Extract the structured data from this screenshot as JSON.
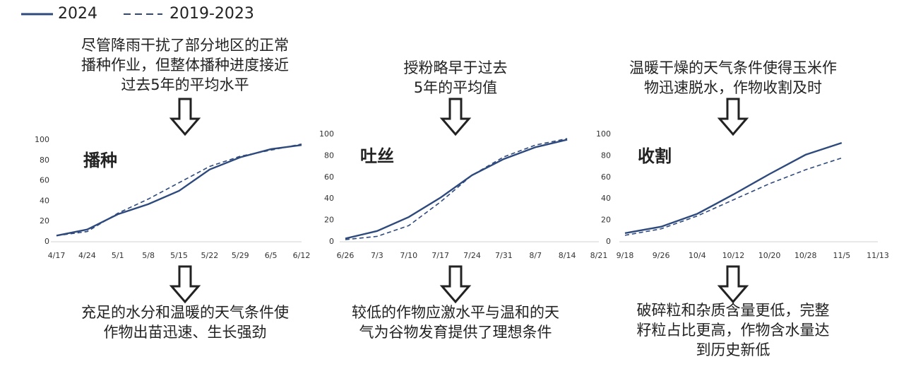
{
  "chart_data": [
    {
      "type": "line",
      "title": "播种",
      "annotation_above": [
        "尽管降雨干扰了部分地区的正常",
        "播种作业，但整体播种进度接近",
        "过去5年的平均水平"
      ],
      "annotation_below": [
        "充足的水分和温暖的天气条件使",
        "作物出苗迅速、生长强劲"
      ],
      "categories": [
        "4/17",
        "4/24",
        "5/1",
        "5/8",
        "5/15",
        "5/22",
        "5/29",
        "6/5",
        "6/12"
      ],
      "series": [
        {
          "name": "2024",
          "color": "#2e4a7d",
          "style": "solid",
          "values": [
            6,
            12,
            27,
            37,
            50,
            71,
            83,
            91,
            95
          ]
        },
        {
          "name": "2019-2023",
          "color": "#2e4a7d",
          "style": "dashed",
          "values": [
            6,
            10,
            28,
            42,
            58,
            74,
            84,
            90,
            96
          ]
        }
      ],
      "ylim": [
        0,
        100
      ],
      "yticks": [
        0,
        20,
        40,
        60,
        80,
        100
      ]
    },
    {
      "type": "line",
      "title": "吐丝",
      "annotation_above": [
        "授粉略早于过去",
        "5年的平均值"
      ],
      "annotation_below": [
        "较低的作物应激水平与温和的天",
        "气为谷物发育提供了理想条件"
      ],
      "categories": [
        "6/26",
        "7/3",
        "7/10",
        "7/17",
        "7/24",
        "7/31",
        "8/7",
        "8/14",
        "8/21"
      ],
      "series": [
        {
          "name": "2024",
          "color": "#2e4a7d",
          "style": "solid",
          "values": [
            3,
            10,
            23,
            41,
            62,
            77,
            88,
            95,
            null
          ]
        },
        {
          "name": "2019-2023",
          "color": "#2e4a7d",
          "style": "dashed",
          "values": [
            2,
            5,
            15,
            37,
            62,
            79,
            90,
            96,
            null
          ]
        }
      ],
      "ylim": [
        0,
        100
      ],
      "yticks": [
        0,
        20,
        40,
        60,
        80,
        100
      ]
    },
    {
      "type": "line",
      "title": "收割",
      "annotation_above": [
        "温暖干燥的天气条件使得玉米作",
        "物迅速脱水，作物收割及时"
      ],
      "annotation_below": [
        "破碎粒和杂质含量更低，完整",
        "籽粒占比更高，作物含水量达",
        "到历史新低"
      ],
      "categories": [
        "9/18",
        "9/26",
        "10/4",
        "10/12",
        "10/20",
        "10/28",
        "11/5",
        "11/13"
      ],
      "series": [
        {
          "name": "2024",
          "color": "#2e4a7d",
          "style": "solid",
          "values": [
            8,
            14,
            26,
            44,
            63,
            81,
            92,
            null
          ]
        },
        {
          "name": "2019-2023",
          "color": "#2e4a7d",
          "style": "dashed",
          "values": [
            6,
            12,
            24,
            39,
            54,
            67,
            78,
            null
          ]
        }
      ],
      "ylim": [
        0,
        100
      ],
      "yticks": [
        0,
        20,
        40,
        60,
        80,
        100
      ]
    }
  ]
}
